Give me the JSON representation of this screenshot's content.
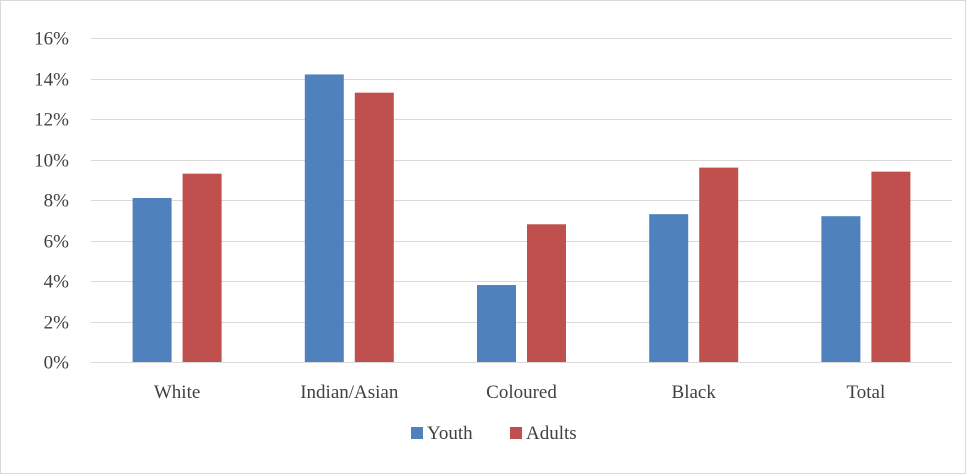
{
  "chart_data": {
    "type": "bar",
    "categories": [
      "White",
      "Indian/Asian",
      "Coloured",
      "Black",
      "Total"
    ],
    "series": [
      {
        "name": "Youth",
        "values": [
          8.1,
          14.2,
          3.8,
          7.3,
          7.2
        ],
        "color": "#4f81bd"
      },
      {
        "name": "Adults",
        "values": [
          9.3,
          13.3,
          6.8,
          9.6,
          9.4
        ],
        "color": "#c0504d"
      }
    ],
    "y_ticks": [
      "0%",
      "2%",
      "4%",
      "6%",
      "8%",
      "10%",
      "12%",
      "14%",
      "16%"
    ],
    "ylim": [
      0,
      16
    ],
    "y_unit": "%",
    "grid": true,
    "legend_position": "bottom",
    "gridline_color": "#d9d9d9",
    "text_color": "#404040"
  }
}
